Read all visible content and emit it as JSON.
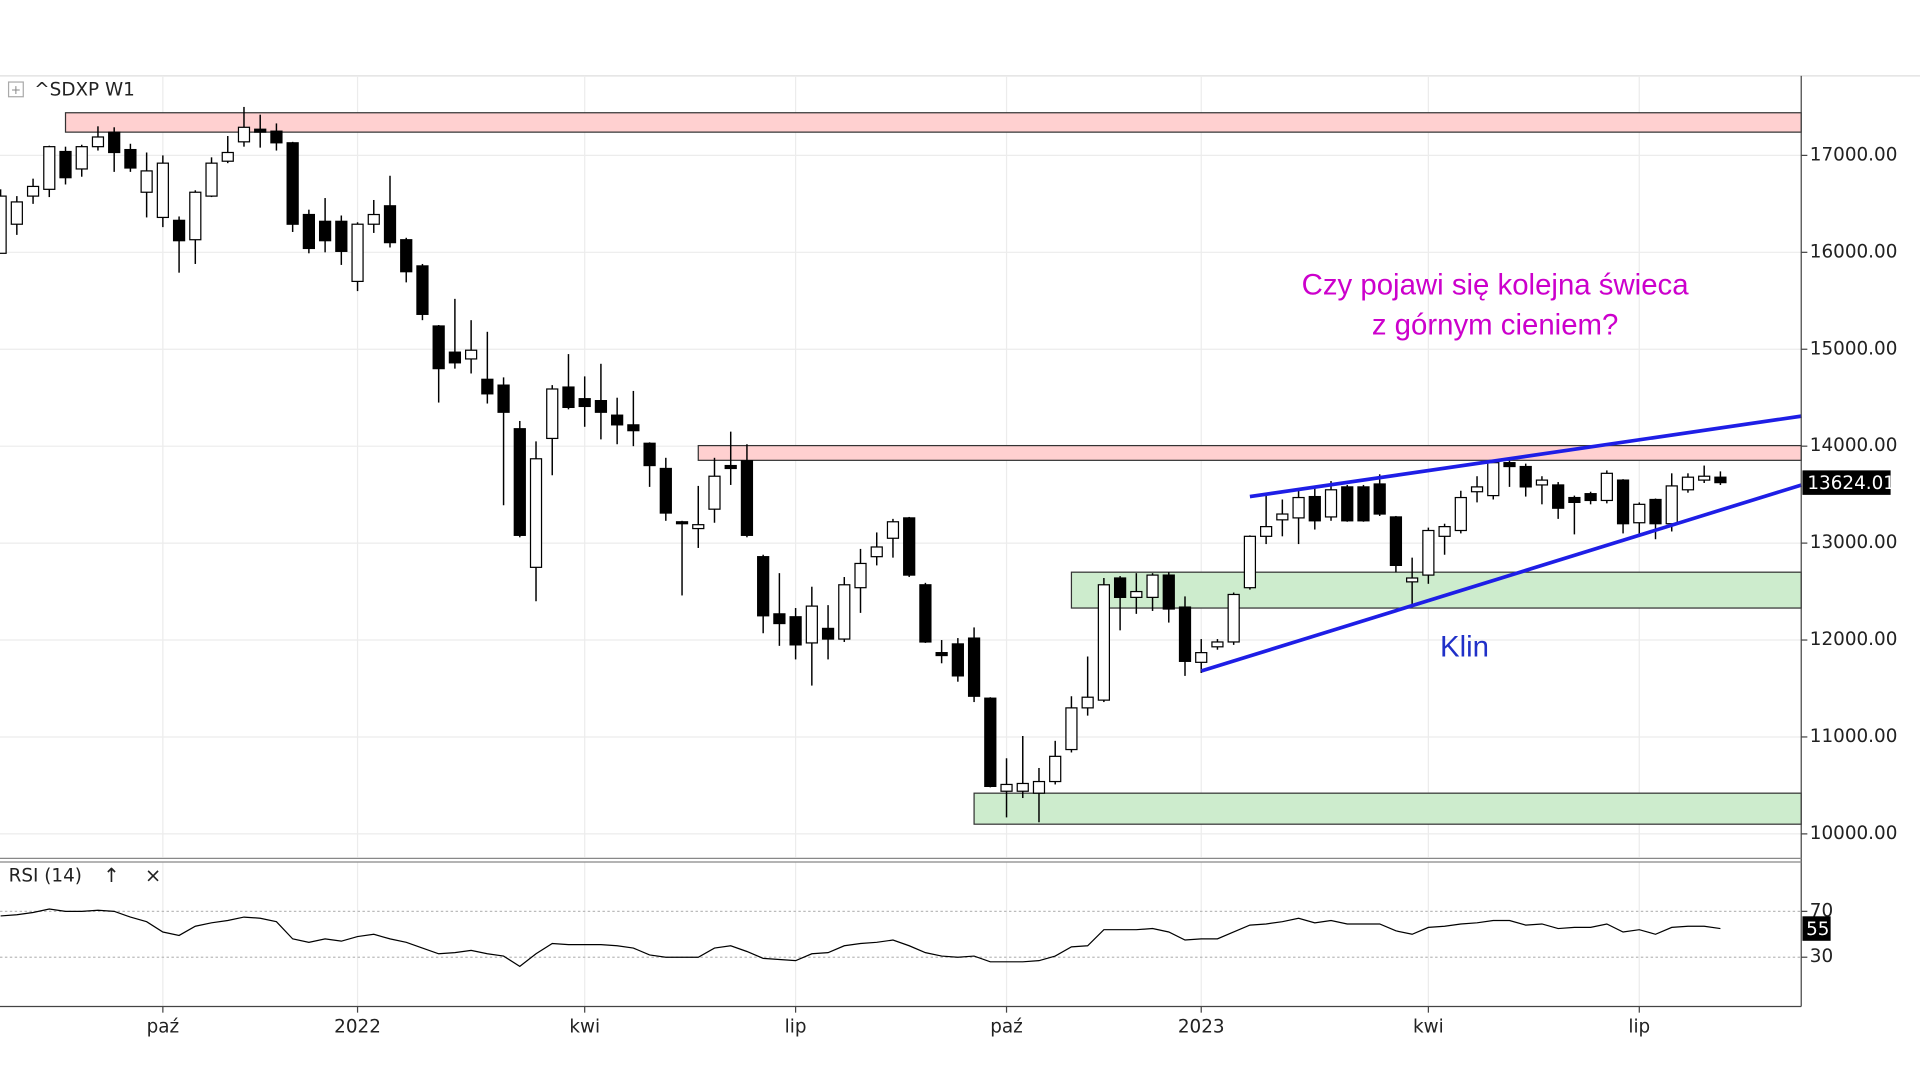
{
  "chart_data": [
    {
      "type": "candlestick",
      "title": "^SDXP W1",
      "categories": [
        null,
        null,
        null,
        null,
        null,
        null,
        null,
        null,
        null,
        null,
        "paź",
        null,
        null,
        null,
        null,
        null,
        null,
        null,
        null,
        null,
        null,
        null,
        "2022",
        null,
        null,
        null,
        null,
        null,
        null,
        null,
        null,
        null,
        null,
        null,
        null,
        null,
        "kwi",
        null,
        null,
        null,
        null,
        null,
        null,
        null,
        null,
        null,
        null,
        null,
        null,
        "lip",
        null,
        null,
        null,
        null,
        null,
        null,
        null,
        null,
        null,
        null,
        null,
        null,
        "paź",
        null,
        null,
        null,
        null,
        null,
        null,
        null,
        null,
        null,
        null,
        null,
        "2023",
        null,
        null,
        null,
        null,
        null,
        null,
        null,
        null,
        null,
        null,
        null,
        null,
        null,
        "kwi",
        null,
        null,
        null,
        null,
        null,
        null,
        null,
        null,
        null,
        null,
        null,
        null,
        "lip",
        null,
        null,
        null,
        null,
        null
      ],
      "open": [
        15990,
        16290,
        16580,
        16650,
        17040,
        16860,
        17090,
        17240,
        17060,
        16620,
        16360,
        16330,
        16130,
        16580,
        16940,
        17140,
        17270,
        17250,
        17130,
        16390,
        16320,
        16320,
        15700,
        16290,
        16480,
        16130,
        15860,
        15240,
        14970,
        14900,
        14690,
        14630,
        14180,
        12750,
        14080,
        14610,
        14490,
        14470,
        14320,
        14220,
        14030,
        13770,
        13220,
        13150,
        13350,
        13800,
        13850,
        12860,
        12270,
        12240,
        11970,
        12120,
        12010,
        12540,
        12860,
        13050,
        13260,
        12570,
        11870,
        11960,
        12020,
        11400,
        10440,
        10440,
        10420,
        10540,
        10870,
        11300,
        11380,
        12640,
        12440,
        12440,
        12670,
        12340,
        11770,
        11930,
        11980,
        12540,
        13070,
        13240,
        13260,
        13480,
        13270,
        13580,
        13580,
        13610,
        13270,
        12600,
        12670,
        13070,
        13130,
        13530,
        13490,
        13830,
        13790,
        13600,
        13600,
        13470,
        13510,
        13440,
        13650,
        13210,
        13450,
        13200,
        13550,
        13650,
        13680
      ],
      "high": [
        16650,
        16580,
        16760,
        17100,
        17090,
        17110,
        17300,
        17290,
        17120,
        17030,
        17000,
        16370,
        16640,
        16980,
        17200,
        17500,
        17420,
        17330,
        17140,
        16440,
        16560,
        16380,
        16310,
        16540,
        16790,
        16150,
        15880,
        15250,
        15520,
        15300,
        15180,
        14710,
        14260,
        14050,
        14630,
        14950,
        14720,
        14850,
        14500,
        14570,
        14040,
        13880,
        13230,
        13590,
        13880,
        14150,
        14020,
        12880,
        12690,
        12330,
        12550,
        12360,
        12650,
        12940,
        13110,
        13250,
        13270,
        12590,
        12000,
        12020,
        12130,
        11410,
        10780,
        11010,
        10680,
        10960,
        11420,
        11830,
        12640,
        12660,
        12690,
        12690,
        12700,
        12450,
        12010,
        12010,
        12490,
        13080,
        13510,
        13450,
        13540,
        13590,
        13640,
        13600,
        13600,
        13710,
        13280,
        12850,
        13160,
        13200,
        13540,
        13690,
        13860,
        13850,
        13820,
        13690,
        13630,
        13490,
        13530,
        13750,
        13660,
        13420,
        13460,
        13720,
        13720,
        13800,
        13740
      ],
      "low": [
        15990,
        16180,
        16500,
        16570,
        16700,
        16780,
        17050,
        16830,
        16830,
        16360,
        16260,
        15790,
        15880,
        16570,
        16920,
        17090,
        17080,
        17050,
        16210,
        15990,
        16000,
        15870,
        15600,
        16200,
        16050,
        15690,
        15300,
        14450,
        14800,
        14750,
        14440,
        13390,
        13060,
        12400,
        13700,
        14380,
        14200,
        14070,
        14020,
        14000,
        13580,
        13230,
        12460,
        12950,
        13210,
        13600,
        13060,
        12070,
        11940,
        11800,
        11530,
        11800,
        11980,
        12280,
        12770,
        12850,
        12650,
        11970,
        11760,
        11570,
        11360,
        10480,
        10170,
        10370,
        10120,
        10510,
        10840,
        11220,
        11360,
        12100,
        12270,
        12300,
        12180,
        11630,
        11660,
        11900,
        11950,
        12520,
        12990,
        13070,
        12990,
        13140,
        13230,
        13220,
        13220,
        13280,
        12700,
        12350,
        12580,
        12880,
        13100,
        13420,
        13450,
        13580,
        13480,
        13400,
        13250,
        13090,
        13400,
        13410,
        13100,
        13080,
        13040,
        13120,
        13520,
        13620,
        13600
      ],
      "close": [
        16580,
        16520,
        16680,
        17090,
        16770,
        17090,
        17190,
        17030,
        16870,
        16840,
        16920,
        16120,
        16620,
        16920,
        17030,
        17290,
        17240,
        17130,
        16290,
        16040,
        16120,
        16010,
        16290,
        16390,
        16100,
        15800,
        15360,
        14800,
        14860,
        14990,
        14540,
        14350,
        13080,
        13870,
        14590,
        14400,
        14410,
        14350,
        14220,
        14160,
        13800,
        13310,
        13200,
        13190,
        13690,
        13770,
        13080,
        12250,
        12170,
        11950,
        12350,
        12010,
        12570,
        12790,
        12960,
        13220,
        12670,
        11980,
        11840,
        11630,
        11420,
        10490,
        10510,
        10520,
        10540,
        10800,
        11300,
        11410,
        12570,
        12440,
        12500,
        12670,
        12320,
        11780,
        11870,
        11980,
        12470,
        13070,
        13170,
        13300,
        13470,
        13230,
        13550,
        13230,
        13230,
        13300,
        12770,
        12640,
        13130,
        13170,
        13470,
        13580,
        13830,
        13790,
        13580,
        13650,
        13360,
        13420,
        13440,
        13720,
        13200,
        13400,
        13200,
        13590,
        13680,
        13690,
        13624.01
      ],
      "up_color": "#ffffff",
      "down_color": "#000000",
      "ylim": [
        9760,
        17820
      ],
      "yticks": [
        {
          "value": 10000,
          "label": "10000.00"
        },
        {
          "value": 11000,
          "label": "11000.00"
        },
        {
          "value": 12000,
          "label": "12000.00"
        },
        {
          "value": 13000,
          "label": "13000.00"
        },
        {
          "value": 14000,
          "label": "14000.00"
        },
        {
          "value": 15000,
          "label": "15000.00"
        },
        {
          "value": 16000,
          "label": "16000.00"
        },
        {
          "value": 17000,
          "label": "17000.00"
        }
      ],
      "grid": true,
      "zones": [
        {
          "low": 17240,
          "high": 17440,
          "from": 4,
          "color": "#ffd0d0"
        },
        {
          "low": 13854,
          "high": 14006,
          "from": 43,
          "color": "#ffd0d0"
        },
        {
          "low": 12330,
          "high": 12700,
          "from": 66,
          "color": "#cdeccd"
        },
        {
          "low": 10100,
          "high": 10420,
          "from": 60,
          "color": "#cdeccd"
        }
      ],
      "trendlines": [
        {
          "from": [
            77,
            13480
          ],
          "to": [
            111,
            14310
          ],
          "color": "#1e1ee6"
        },
        {
          "from": [
            74,
            11680
          ],
          "to": [
            111,
            13600
          ],
          "color": "#1e1ee6"
        }
      ],
      "annotations": [
        "Czy pojawi się kolejna świeca",
        "z górnym cieniem?",
        "Klin"
      ]
    },
    {
      "type": "line",
      "title": "RSI (14)",
      "series": [
        {
          "color": "#000000",
          "values": [
            66,
            67,
            69,
            72,
            70,
            70,
            71,
            70,
            65,
            61,
            52,
            49,
            57,
            60,
            62,
            65,
            64,
            61,
            46,
            43,
            46,
            44,
            48,
            50,
            46,
            43,
            38,
            33,
            34,
            36,
            33,
            31,
            22,
            33,
            42,
            41,
            41,
            41,
            40,
            38,
            32,
            30,
            30,
            30,
            38,
            40,
            35,
            29,
            28,
            27,
            33,
            34,
            40,
            42,
            43,
            45,
            40,
            34,
            31,
            30,
            31,
            26,
            26,
            26,
            27,
            31,
            39,
            40,
            54,
            54,
            54,
            55,
            52,
            45,
            46,
            46,
            52,
            58,
            59,
            61,
            64,
            60,
            62,
            59,
            59,
            59,
            53,
            50,
            56,
            57,
            59,
            60,
            62,
            62,
            58,
            59,
            55,
            56,
            56,
            59,
            52,
            54,
            50,
            56,
            57,
            57,
            55
          ]
        }
      ],
      "ylim": [
        -13,
        113
      ],
      "yticks": [
        30,
        70
      ],
      "grid": true
    }
  ]
}
